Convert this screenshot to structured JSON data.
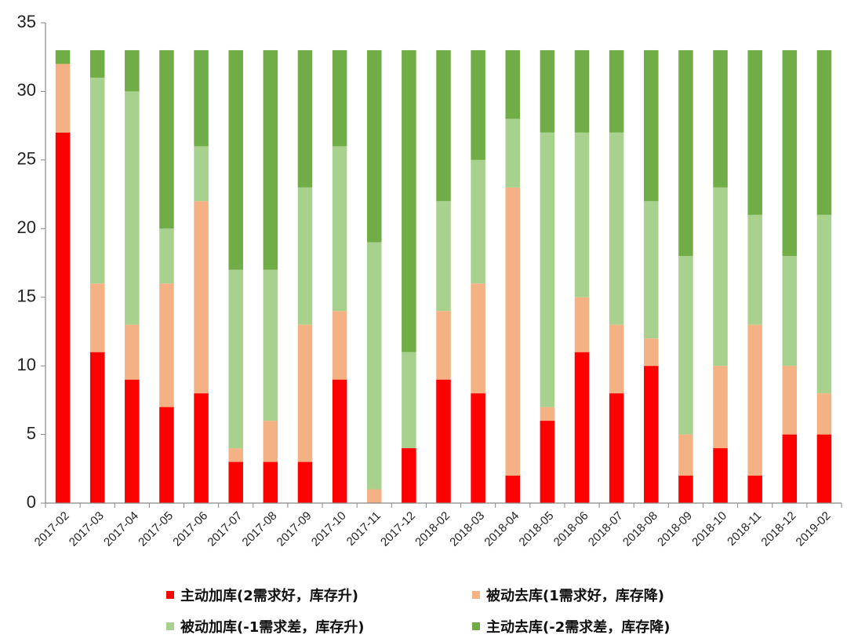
{
  "chart_data": {
    "type": "bar",
    "stacked": true,
    "ylim": [
      0,
      35
    ],
    "yticks": [
      0,
      5,
      10,
      15,
      20,
      25,
      30,
      35
    ],
    "categories": [
      "2017-02",
      "2017-03",
      "2017-04",
      "2017-05",
      "2017-06",
      "2017-07",
      "2017-08",
      "2017-09",
      "2017-10",
      "2017-11",
      "2017-12",
      "2018-02",
      "2018-03",
      "2018-04",
      "2018-05",
      "2018-06",
      "2018-07",
      "2018-08",
      "2018-09",
      "2018-10",
      "2018-11",
      "2018-12",
      "2019-02"
    ],
    "series": [
      {
        "name": "主动加库(2需求好，库存升)",
        "color": "#ff0000",
        "values": [
          27,
          11,
          9,
          7,
          8,
          3,
          3,
          3,
          9,
          0,
          4,
          9,
          8,
          2,
          6,
          11,
          8,
          10,
          2,
          4,
          2,
          5,
          5
        ]
      },
      {
        "name": "被动去库(1需求好，库存降)",
        "color": "#f4b183",
        "values": [
          5,
          5,
          4,
          9,
          14,
          1,
          3,
          10,
          5,
          1,
          0,
          5,
          8,
          21,
          1,
          4,
          5,
          2,
          3,
          6,
          11,
          5,
          3
        ]
      },
      {
        "name": "被动加库(-1需求差，库存升)",
        "color": "#a9d18e",
        "values": [
          0,
          15,
          17,
          4,
          4,
          13,
          11,
          10,
          12,
          18,
          7,
          8,
          9,
          5,
          20,
          12,
          14,
          10,
          13,
          13,
          8,
          8,
          13
        ]
      },
      {
        "name": "主动去库(-2需求差，库存降)",
        "color": "#70ad47",
        "values": [
          1,
          2,
          3,
          13,
          7,
          16,
          16,
          10,
          7,
          14,
          22,
          11,
          8,
          5,
          6,
          6,
          6,
          11,
          15,
          10,
          12,
          15,
          12
        ]
      }
    ],
    "legend_position": "bottom"
  }
}
